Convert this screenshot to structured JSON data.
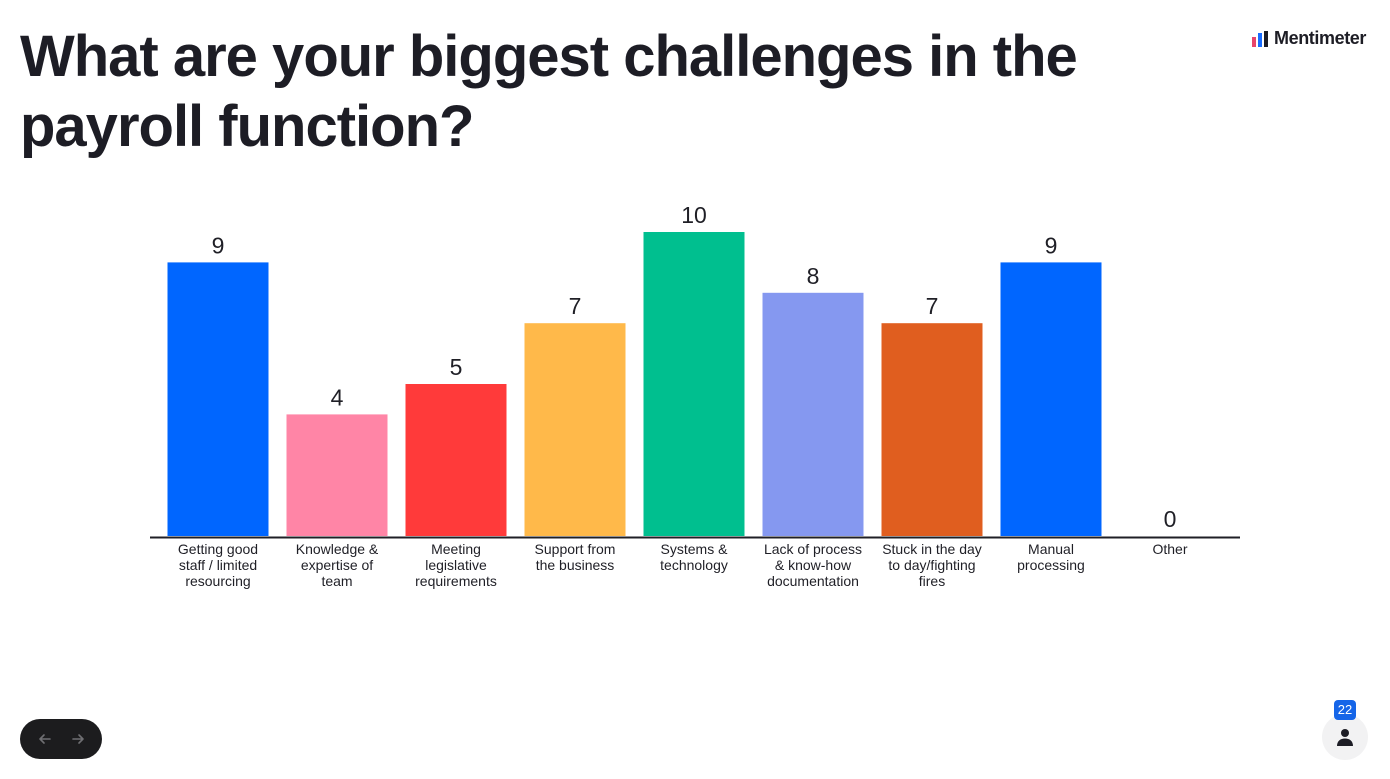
{
  "brand": {
    "name": "Mentimeter"
  },
  "participant_count": "22",
  "chart_data": {
    "type": "bar",
    "title": "What are your biggest challenges in the payroll function?",
    "xlabel": "",
    "ylabel": "",
    "ylim": [
      0,
      10
    ],
    "grid": false,
    "legend": "none",
    "categories": [
      [
        "Getting good",
        "staff / limited",
        "resourcing"
      ],
      [
        "Knowledge &",
        "expertise of",
        "team"
      ],
      [
        "Meeting",
        "legislative",
        "requirements"
      ],
      [
        "Support from",
        "the business"
      ],
      [
        "Systems &",
        "technology"
      ],
      [
        "Lack of process",
        "& know-how",
        "documentation"
      ],
      [
        "Stuck in the day",
        "to day/fighting",
        "fires"
      ],
      [
        "Manual",
        "processing"
      ],
      [
        "Other"
      ]
    ],
    "values": [
      9,
      4,
      5,
      7,
      10,
      8,
      7,
      9,
      0
    ],
    "colors": [
      "#0066ff",
      "#ff85a6",
      "#ff3a3a",
      "#ffb94a",
      "#00bf8f",
      "#8598f0",
      "#e05e1f",
      "#0066ff",
      "#0066ff"
    ]
  }
}
